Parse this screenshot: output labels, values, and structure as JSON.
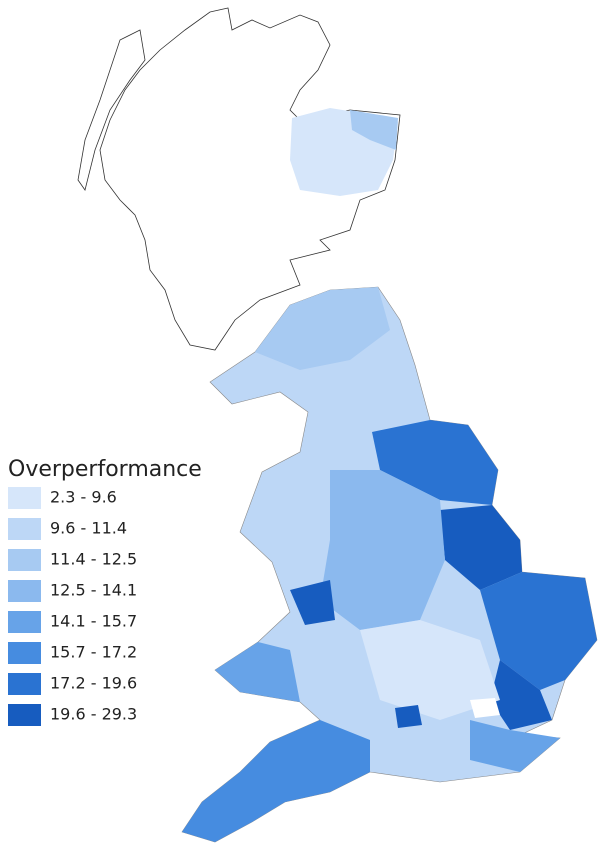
{
  "legend": {
    "title": "Overperformance",
    "items": [
      {
        "label": "2.3 - 9.6",
        "color": "#d6e6fa"
      },
      {
        "label": "9.6 - 11.4",
        "color": "#bdd7f6"
      },
      {
        "label": "11.4 - 12.5",
        "color": "#a7caf2"
      },
      {
        "label": "12.5 - 14.1",
        "color": "#8bb9ee"
      },
      {
        "label": "14.1 - 15.7",
        "color": "#67a3e8"
      },
      {
        "label": "15.7 - 17.2",
        "color": "#468ce0"
      },
      {
        "label": "17.2 - 19.6",
        "color": "#2a73d2"
      },
      {
        "label": "19.6 - 29.3",
        "color": "#175cbf"
      }
    ]
  }
}
